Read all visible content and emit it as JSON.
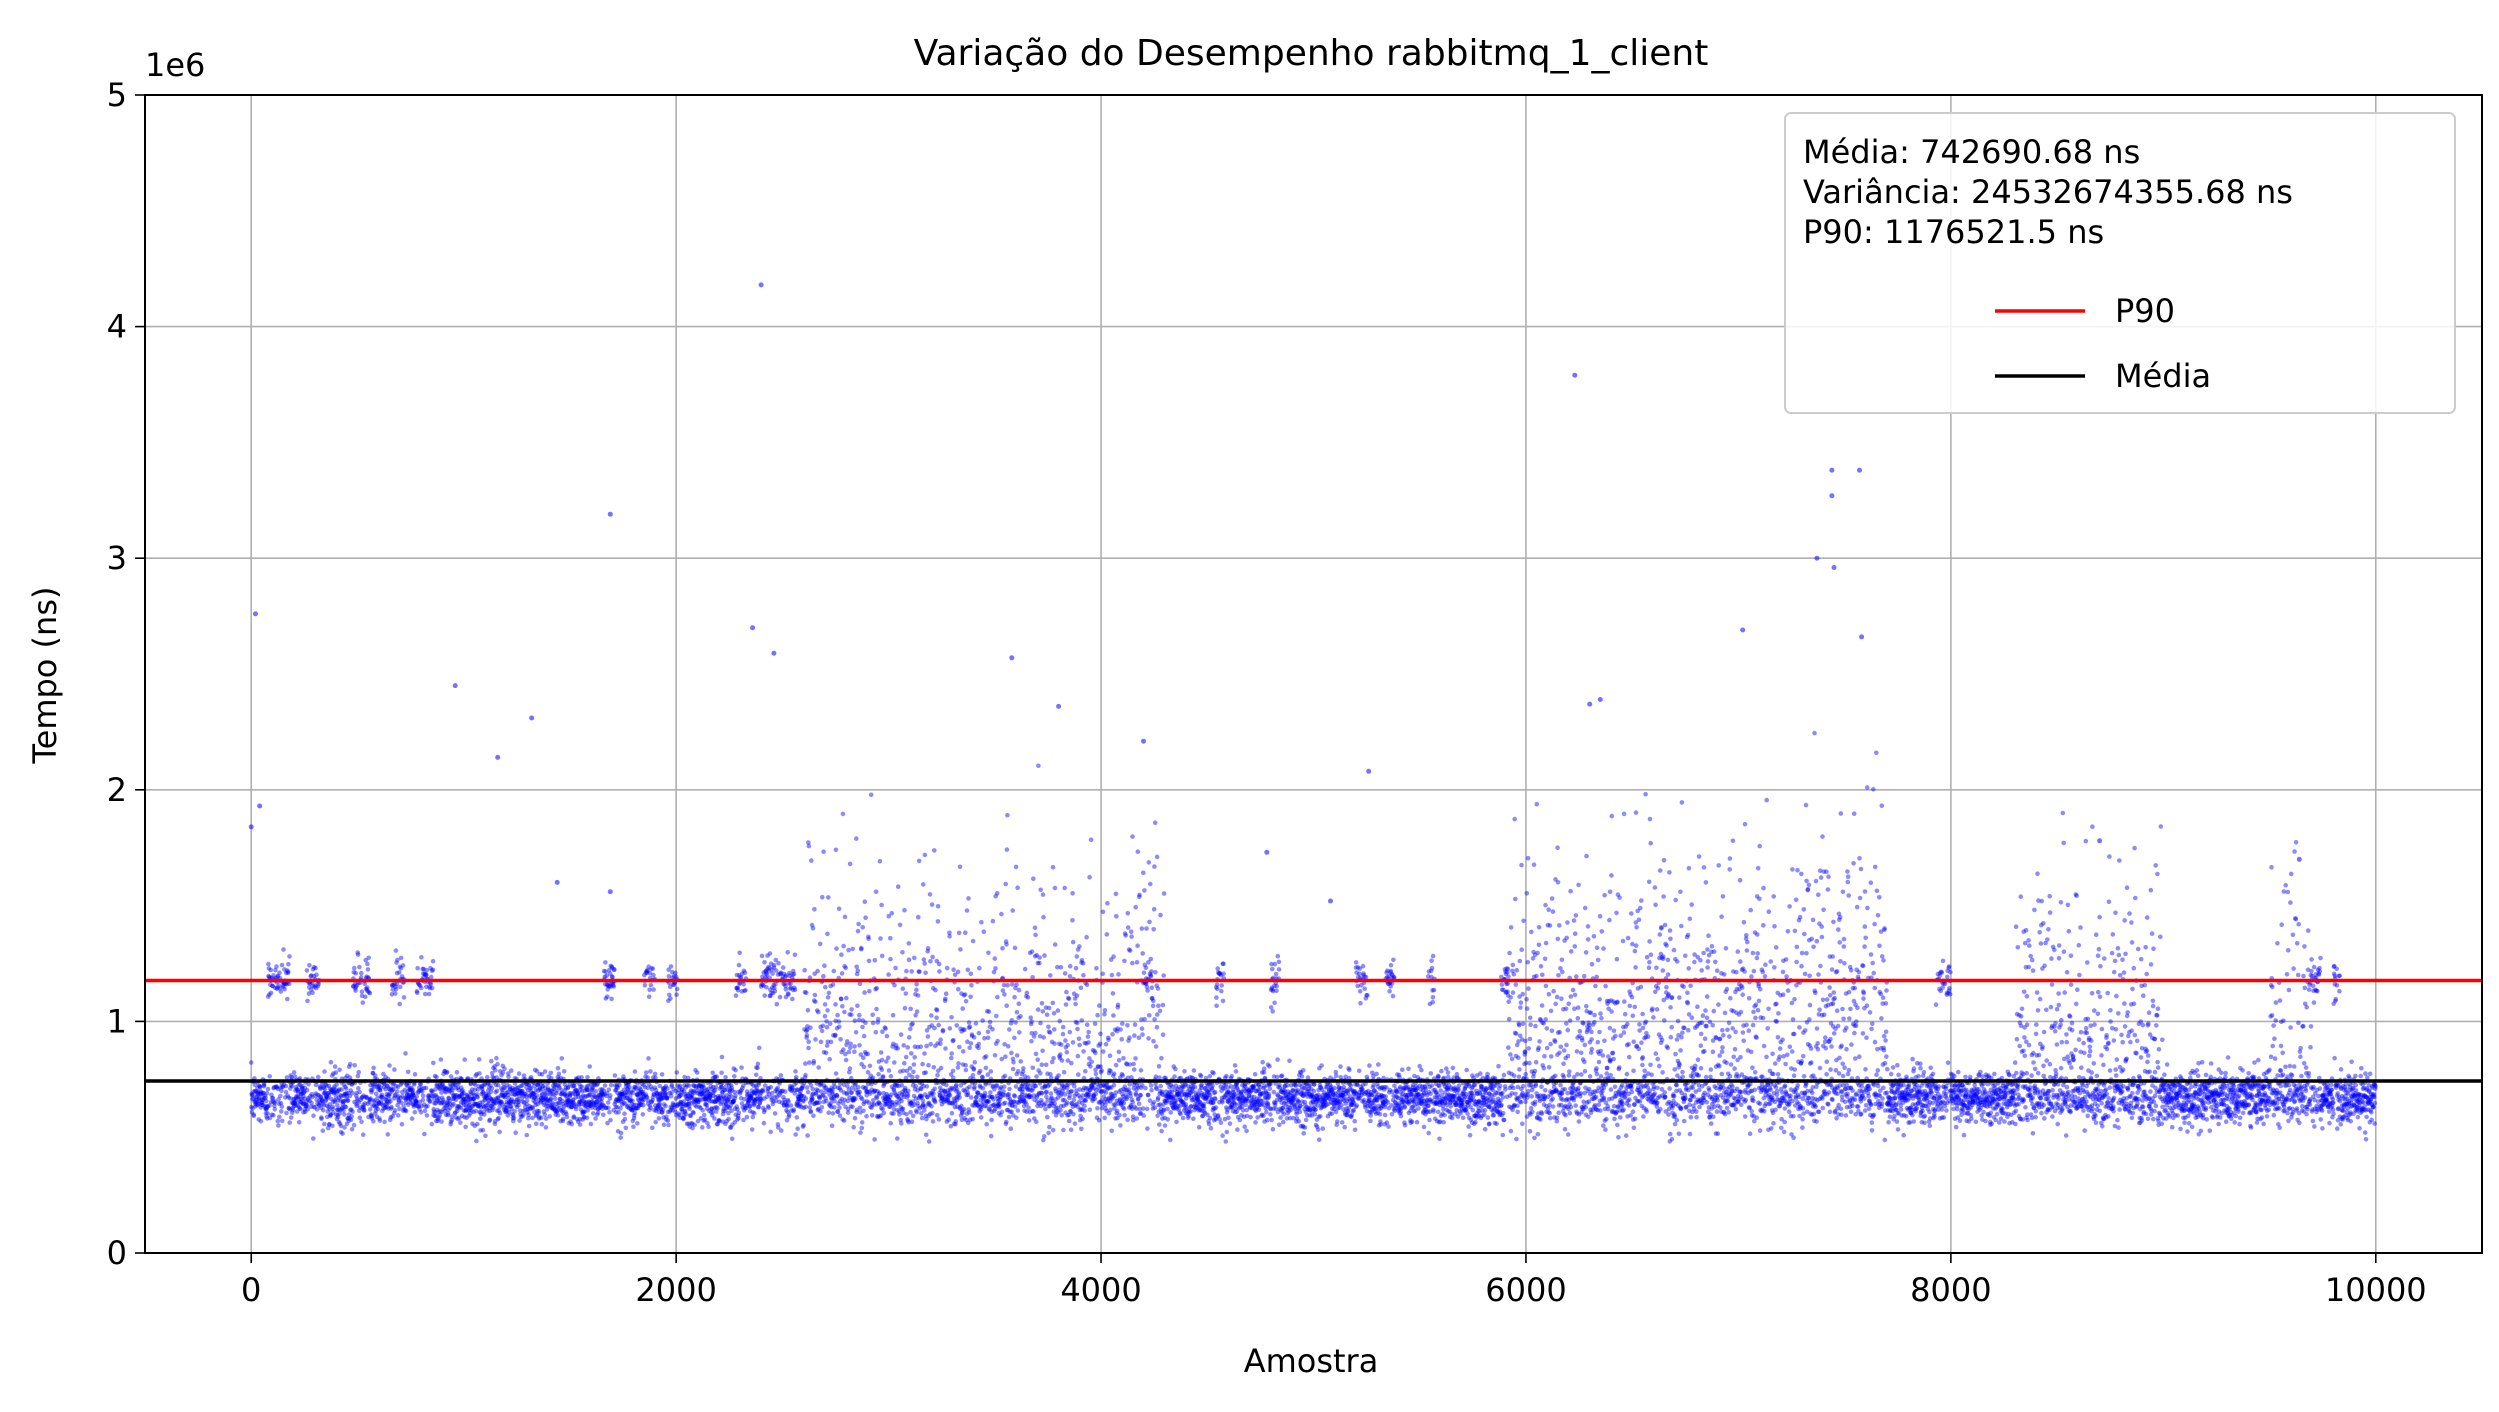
{
  "chart_data": {
    "type": "scatter",
    "title": "Variação do Desempenho rabbitmq_1_client",
    "xlabel": "Amostra",
    "ylabel": "Tempo (ns)",
    "y_offset_label": "1e6",
    "xlim": [
      -500,
      10500
    ],
    "ylim": [
      0,
      5000000
    ],
    "x_ticks": [
      0,
      2000,
      4000,
      6000,
      8000,
      10000
    ],
    "x_tick_labels": [
      "0",
      "2000",
      "4000",
      "6000",
      "8000",
      "10000"
    ],
    "y_ticks": [
      0,
      1000000,
      2000000,
      3000000,
      4000000,
      5000000
    ],
    "y_tick_labels": [
      "0",
      "1",
      "2",
      "3",
      "4",
      "5"
    ],
    "grid": true,
    "legend_position": "top-right",
    "stats_text": [
      "Média: 742690.68 ns",
      "Variância: 24532674355.68 ns",
      "P90: 1176521.5 ns"
    ],
    "reference_lines": [
      {
        "name": "P90",
        "value": 1176521.5,
        "color": "#ff0000"
      },
      {
        "name": "Média",
        "value": 742690.68,
        "color": "#000000"
      }
    ],
    "series": [
      {
        "marker_color": "#0000ff",
        "x_range": [
          0,
          9999
        ],
        "count": 10000,
        "outliers": [
          [
            0,
            1840000
          ],
          [
            20,
            2760000
          ],
          [
            40,
            1930000
          ],
          [
            960,
            2450000
          ],
          [
            1160,
            2140000
          ],
          [
            1320,
            2310000
          ],
          [
            1440,
            1600000
          ],
          [
            1690,
            3190000
          ],
          [
            1690,
            1560000
          ],
          [
            2360,
            2700000
          ],
          [
            2400,
            4180000
          ],
          [
            2460,
            2590000
          ],
          [
            3580,
            2570000
          ],
          [
            3800,
            2360000
          ],
          [
            4200,
            2210000
          ],
          [
            4780,
            1730000
          ],
          [
            5080,
            1520000
          ],
          [
            5260,
            2080000
          ],
          [
            6230,
            3790000
          ],
          [
            6300,
            2370000
          ],
          [
            6350,
            2390000
          ],
          [
            7020,
            2690000
          ],
          [
            7370,
            3000000
          ],
          [
            7440,
            3380000
          ],
          [
            7440,
            3270000
          ],
          [
            7450,
            2960000
          ],
          [
            7570,
            3380000
          ],
          [
            7580,
            2660000
          ],
          [
            8700,
            1780000
          ],
          [
            9640,
            1700000
          ]
        ]
      }
    ]
  }
}
